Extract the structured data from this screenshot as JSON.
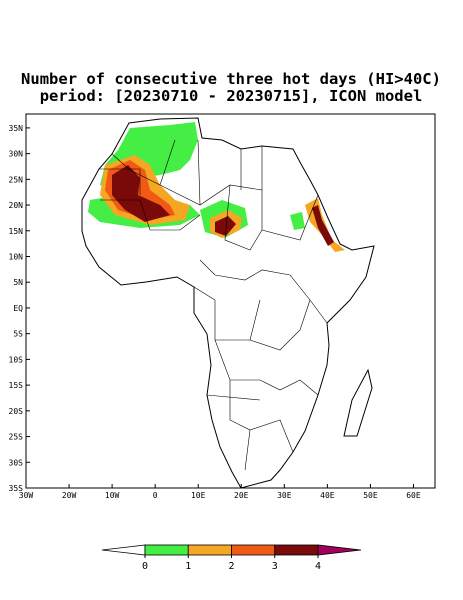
{
  "map": {
    "title": "Number of consecutive three hot days (HI>40C)",
    "subtitle": "period: [20230710 - 20230715], ICON model",
    "lon_range": [
      -30,
      65
    ],
    "lat_range": [
      -35,
      37.7
    ],
    "lat_ticks": [
      {
        "value": 35,
        "label": "35N"
      },
      {
        "value": 30,
        "label": "30N"
      },
      {
        "value": 25,
        "label": "25N"
      },
      {
        "value": 20,
        "label": "20N"
      },
      {
        "value": 15,
        "label": "15N"
      },
      {
        "value": 10,
        "label": "10N"
      },
      {
        "value": 5,
        "label": "5N"
      },
      {
        "value": 0,
        "label": "EQ"
      },
      {
        "value": -5,
        "label": "5S"
      },
      {
        "value": -10,
        "label": "10S"
      },
      {
        "value": -15,
        "label": "15S"
      },
      {
        "value": -20,
        "label": "20S"
      },
      {
        "value": -25,
        "label": "25S"
      },
      {
        "value": -30,
        "label": "30S"
      },
      {
        "value": -35,
        "label": "35S"
      }
    ],
    "lon_ticks": [
      {
        "value": -30,
        "label": "30W"
      },
      {
        "value": -20,
        "label": "20W"
      },
      {
        "value": -10,
        "label": "10W"
      },
      0,
      {
        "value": 10,
        "label": "10E"
      },
      {
        "value": 20,
        "label": "20E"
      },
      {
        "value": 30,
        "label": "30E"
      },
      {
        "value": 40,
        "label": "40E"
      },
      {
        "value": 50,
        "label": "50E"
      },
      {
        "value": 60,
        "label": "60E"
      }
    ],
    "colorbar": {
      "ticks": [
        0,
        1,
        2,
        3,
        4
      ],
      "colors": [
        "#44ee44",
        "#f5a623",
        "#f05a14",
        "#7a0a0a"
      ],
      "under_color": "#ffffff",
      "over_color": "#a0005a"
    }
  }
}
